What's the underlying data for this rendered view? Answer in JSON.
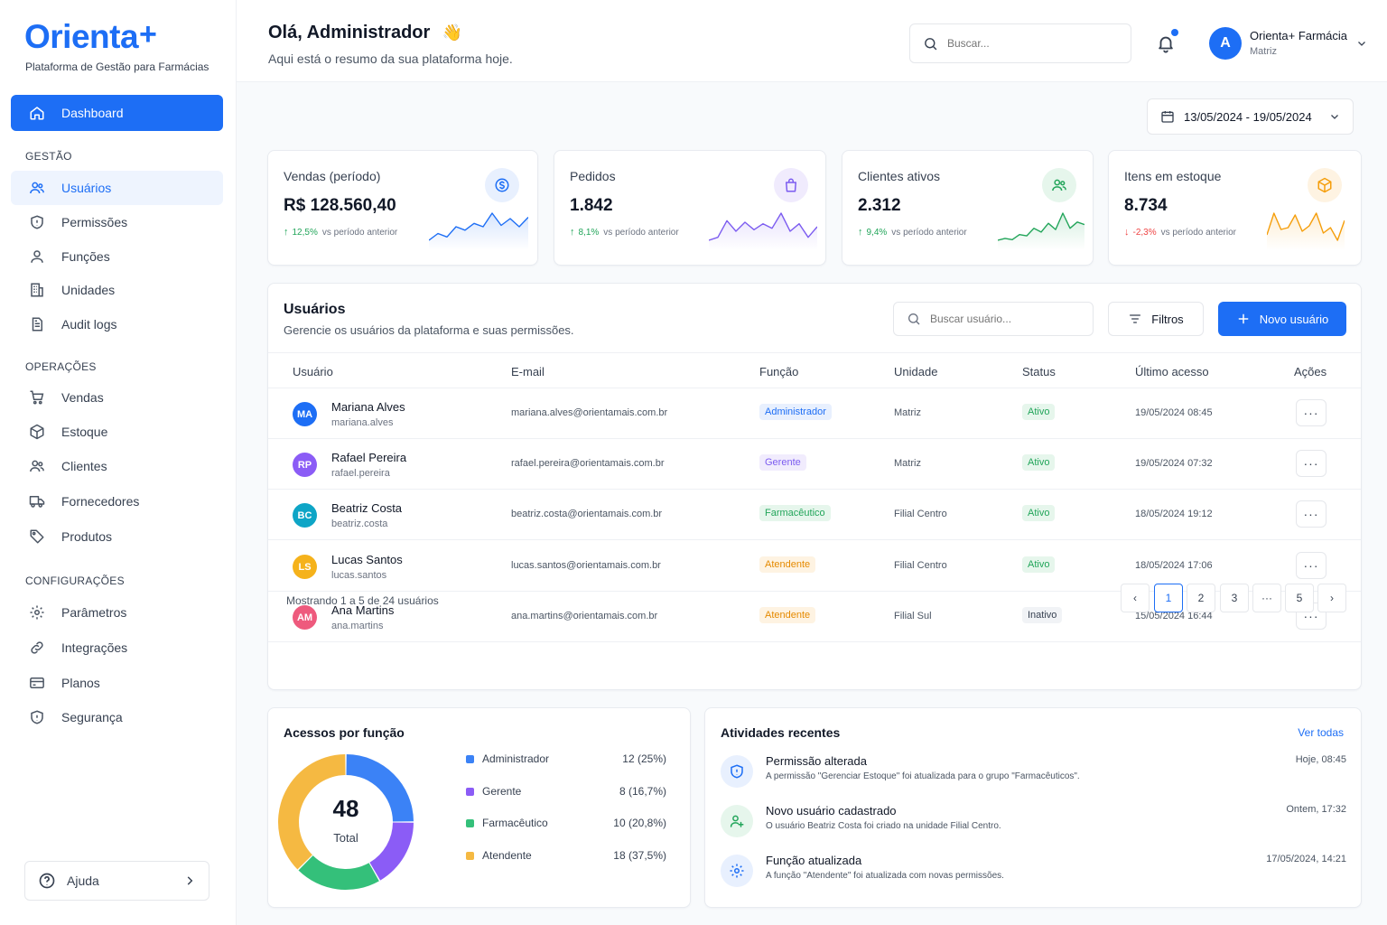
{
  "brand": {
    "name": "Orienta",
    "plus": "+",
    "tagline": "Plataforma de Gestão para Farmácias"
  },
  "nav": {
    "dashboard": "Dashboard",
    "sections": {
      "gestao": "GESTÃO",
      "operacoes": "OPERAÇÕES",
      "config": "CONFIGURAÇÕES"
    },
    "items": [
      {
        "label": "Usuários",
        "icon": "users-icon",
        "active": true
      },
      {
        "label": "Permissões",
        "icon": "shield-icon"
      },
      {
        "label": "Funções",
        "icon": "user-icon"
      },
      {
        "label": "Unidades",
        "icon": "building-icon"
      },
      {
        "label": "Audit logs",
        "icon": "document-icon"
      },
      {
        "label": "Vendas",
        "icon": "cart-icon"
      },
      {
        "label": "Estoque",
        "icon": "box-icon"
      },
      {
        "label": "Clientes",
        "icon": "users-icon"
      },
      {
        "label": "Fornecedores",
        "icon": "truck-icon"
      },
      {
        "label": "Produtos",
        "icon": "tag-icon"
      },
      {
        "label": "Parâmetros",
        "icon": "gear-icon"
      },
      {
        "label": "Integrações",
        "icon": "link-icon"
      },
      {
        "label": "Planos",
        "icon": "card-icon"
      },
      {
        "label": "Segurança",
        "icon": "shield-icon"
      }
    ],
    "help": "Ajuda"
  },
  "header": {
    "greeting": "Olá, Administrador",
    "wave": "👋",
    "subtitle": "Aqui está o resumo da sua plataforma hoje.",
    "search_placeholder": "Buscar...",
    "avatar_letter": "A",
    "org_name": "Orienta+ Farmácia",
    "org_sub": "Matriz"
  },
  "date_range": "13/05/2024 - 19/05/2024",
  "stats": [
    {
      "label": "Vendas (período)",
      "value": "R$ 128.560,40",
      "delta": "12,5%",
      "vs": "vs período anterior",
      "trend": "up",
      "color": "#1d6ef5",
      "spark": [
        2,
        3,
        2.5,
        4,
        3.5,
        4.5,
        4,
        6,
        4.2,
        5.2,
        4,
        5.4
      ]
    },
    {
      "label": "Pedidos",
      "value": "1.842",
      "delta": "8,1%",
      "vs": "vs período anterior",
      "trend": "up",
      "color": "#7c5cf0",
      "spark": [
        2,
        2.4,
        4.6,
        3.2,
        4.4,
        3.4,
        4.2,
        3.6,
        5.6,
        3.2,
        4.2,
        2.4,
        3.8
      ]
    },
    {
      "label": "Clientes ativos",
      "value": "2.312",
      "delta": "9,4%",
      "vs": "vs período anterior",
      "trend": "up",
      "color": "#22a55a",
      "spark": [
        1.5,
        1.8,
        1.6,
        2.4,
        2.2,
        3.4,
        2.8,
        4.2,
        3.2,
        5.8,
        3.4,
        4.4,
        4
      ]
    },
    {
      "label": "Itens em estoque",
      "value": "8.734",
      "delta": "-2,3%",
      "vs": "vs período anterior",
      "trend": "down",
      "color": "#f59e0b",
      "spark": [
        3,
        5.4,
        3.6,
        3.8,
        5.2,
        3.4,
        4,
        5.4,
        3.2,
        3.8,
        2.4,
        4.6
      ]
    }
  ],
  "users_table": {
    "title": "Usuários",
    "subtitle": "Gerencie os usuários da plataforma e suas permissões.",
    "search_placeholder": "Buscar usuário...",
    "filter_label": "Filtros",
    "new_label": "Novo usuário",
    "columns": [
      "Usuário",
      "E-mail",
      "Função",
      "Unidade",
      "Status",
      "Último acesso",
      "Ações"
    ],
    "rows": [
      {
        "initials": "MA",
        "avatar_color": "#1d6ef5",
        "name": "Mariana Alves",
        "login": "mariana.alves",
        "email": "mariana.alves@orientamais.com.br",
        "role": "Administrador",
        "unit": "Matriz",
        "status": "Ativo",
        "last": "19/05/2024 08:45"
      },
      {
        "initials": "RP",
        "avatar_color": "#8b5cf6",
        "name": "Rafael Pereira",
        "login": "rafael.pereira",
        "email": "rafael.pereira@orientamais.com.br",
        "role": "Gerente",
        "unit": "Matriz",
        "status": "Ativo",
        "last": "19/05/2024 07:32"
      },
      {
        "initials": "BC",
        "avatar_color": "#0ea5c6",
        "name": "Beatriz Costa",
        "login": "beatriz.costa",
        "email": "beatriz.costa@orientamais.com.br",
        "role": "Farmacêutico",
        "unit": "Filial Centro",
        "status": "Ativo",
        "last": "18/05/2024 19:12"
      },
      {
        "initials": "LS",
        "avatar_color": "#f5b21b",
        "name": "Lucas Santos",
        "login": "lucas.santos",
        "email": "lucas.santos@orientamais.com.br",
        "role": "Atendente",
        "unit": "Filial Centro",
        "status": "Ativo",
        "last": "18/05/2024 17:06"
      },
      {
        "initials": "AM",
        "avatar_color": "#ee5a7d",
        "name": "Ana Martins",
        "login": "ana.martins",
        "email": "ana.martins@orientamais.com.br",
        "role": "Atendente",
        "unit": "Filial Sul",
        "status": "Inativo",
        "last": "15/05/2024 16:44"
      }
    ],
    "actions_glyph": "···",
    "pagination": {
      "summary": "Mostrando 1 a 5 de 24 usuários",
      "pages": [
        "1",
        "2",
        "3",
        "···",
        "5"
      ],
      "current": "1",
      "prev": "‹",
      "next": "›"
    }
  },
  "roles_card": {
    "title": "Acessos por função",
    "total": "48",
    "total_label": "Total",
    "items": [
      {
        "name": "Administrador",
        "value": "12 (25%)",
        "count": 12,
        "color": "#3b82f6"
      },
      {
        "name": "Gerente",
        "value": "8 (16,7%)",
        "count": 8,
        "color": "#8b5cf6"
      },
      {
        "name": "Farmacêutico",
        "value": "10 (20,8%)",
        "count": 10,
        "color": "#34c07a"
      },
      {
        "name": "Atendente",
        "value": "18 (37,5%)",
        "count": 18,
        "color": "#f5b942"
      }
    ]
  },
  "activities": {
    "title": "Atividades recentes",
    "see_all": "Ver todas",
    "items": [
      {
        "title": "Permissão alterada",
        "desc": "A permissão \"Gerenciar Estoque\" foi atualizada para o grupo \"Farmacêuticos\".",
        "time": "Hoje, 08:45",
        "icon": "shield-icon"
      },
      {
        "title": "Novo usuário cadastrado",
        "desc": "O usuário Beatriz Costa foi criado na unidade Filial Centro.",
        "time": "Ontem, 17:32",
        "icon": "user-plus-icon"
      },
      {
        "title": "Função atualizada",
        "desc": "A função \"Atendente\" foi atualizada com novas permissões.",
        "time": "17/05/2024, 14:21",
        "icon": "gear-icon"
      }
    ]
  }
}
